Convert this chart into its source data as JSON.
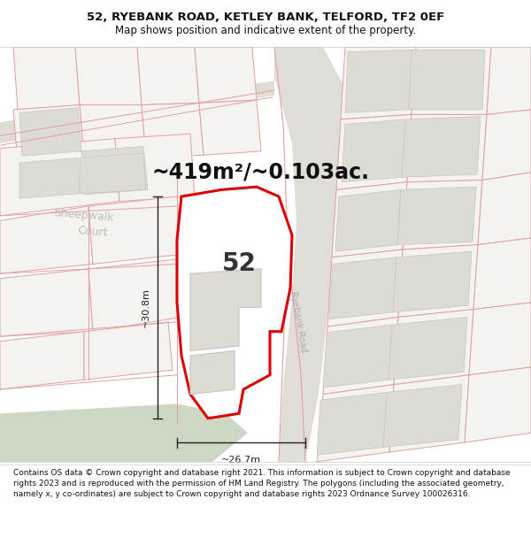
{
  "title_line1": "52, RYEBANK ROAD, KETLEY BANK, TELFORD, TF2 0EF",
  "title_line2": "Map shows position and indicative extent of the property.",
  "area_text": "~419m²/~0.103ac.",
  "number_label": "52",
  "dim_horizontal": "~26.7m",
  "dim_vertical": "~30.8m",
  "road_label": "Ryebank Road",
  "street_label_1": "Sheepwalk",
  "street_label_2": "Court",
  "footer_text": "Contains OS data © Crown copyright and database right 2021. This information is subject to Crown copyright and database rights 2023 and is reproduced with the permission of HM Land Registry. The polygons (including the associated geometry, namely x, y co-ordinates) are subject to Crown copyright and database rights 2023 Ordnance Survey 100026316.",
  "bg_color": "#f5f3f0",
  "road_fill": "#e8e5e0",
  "footer_bg": "#ffffff",
  "plot_outline_color": "#dd0000",
  "parcel_edge": "#e0a0a0",
  "parcel_fill": "#f5f3f0",
  "building_fill": "#dedbd5",
  "building_edge": "#c8c5c0",
  "road_gray_fill": "#e0ddd8",
  "green_fill": "#ccd8c4",
  "dim_color": "#222222",
  "label_gray": "#bbbbbb",
  "title_fontsize": 9.5,
  "subtitle_fontsize": 8.5,
  "area_fontsize": 17,
  "number_fontsize": 20,
  "dim_fontsize": 8,
  "road_label_fontsize": 7,
  "footer_fontsize": 6.5
}
